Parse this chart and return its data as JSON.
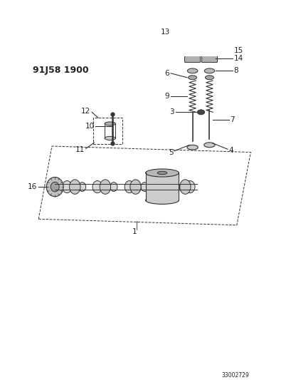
{
  "title": "91J58 1900",
  "bg_color": "#ffffff",
  "line_color": "#333333",
  "text_color": "#222222",
  "title_fontsize": 9,
  "label_fontsize": 7.5,
  "fig_width": 4.1,
  "fig_height": 5.33,
  "dpi": 100
}
